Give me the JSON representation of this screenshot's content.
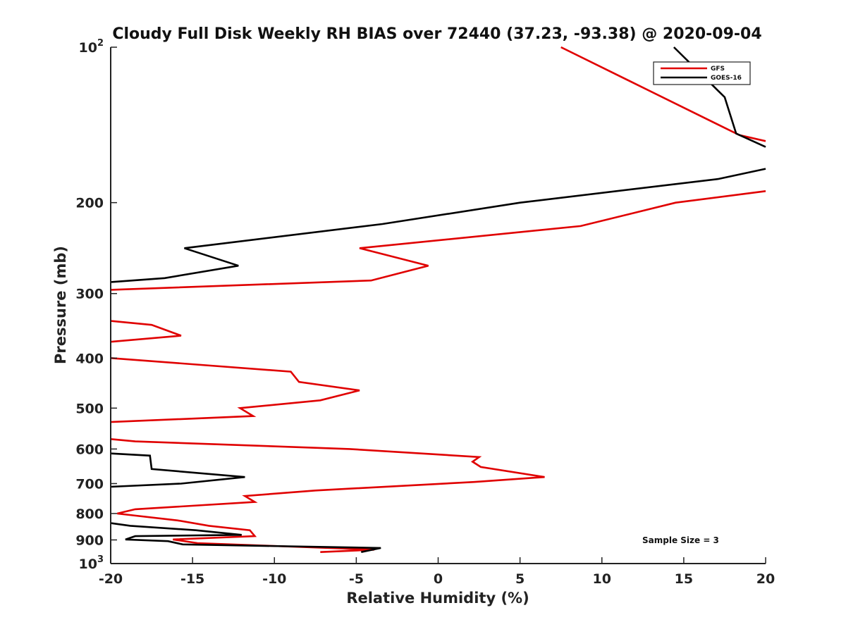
{
  "chart_data": {
    "type": "line",
    "title": "Cloudy Full Disk Weekly RH BIAS over 72440 (37.23, -93.38) @ 2020-09-04",
    "xlabel": "Relative Humidity (%)",
    "ylabel": "Pressure (mb)",
    "xlim": [
      -20,
      20
    ],
    "ylim": [
      100,
      1000
    ],
    "y_scale": "log",
    "y_reversed": true,
    "x_ticks": [
      "-20",
      "-15",
      "-10",
      "-5",
      "0",
      "5",
      "10",
      "15",
      "20"
    ],
    "y_ticks": [
      {
        "value": 100,
        "base": "10",
        "exp": "2"
      },
      {
        "value": 200,
        "label": "200"
      },
      {
        "value": 300,
        "label": "300"
      },
      {
        "value": 400,
        "label": "400"
      },
      {
        "value": 500,
        "label": "500"
      },
      {
        "value": 600,
        "label": "600"
      },
      {
        "value": 700,
        "label": "700"
      },
      {
        "value": 800,
        "label": "800"
      },
      {
        "value": 900,
        "label": "900"
      },
      {
        "value": 1000,
        "base": "10",
        "exp": "3"
      }
    ],
    "legend_position": "top-right",
    "annotation": "Sample Size = 3",
    "series": [
      {
        "name": "GFS",
        "color": "#e00000",
        "points": [
          [
            7.5,
            100
          ],
          [
            18.4,
            148
          ],
          [
            20,
            152
          ],
          [
            null,
            null
          ],
          [
            20,
            190
          ],
          [
            14.5,
            200
          ],
          [
            8.7,
            222
          ],
          [
            -4.8,
            245
          ],
          [
            -0.6,
            265
          ],
          [
            -4.1,
            283
          ],
          [
            -20,
            295
          ],
          [
            null,
            null
          ],
          [
            -20,
            339
          ],
          [
            -17.5,
            345
          ],
          [
            -15.7,
            362
          ],
          [
            -20,
            372
          ],
          [
            null,
            null
          ],
          [
            -20,
            400
          ],
          [
            -9.0,
            425
          ],
          [
            -8.5,
            445
          ],
          [
            -4.8,
            462
          ],
          [
            -7.2,
            483
          ],
          [
            -12.1,
            500
          ],
          [
            -11.3,
            518
          ],
          [
            -20,
            532
          ],
          [
            null,
            null
          ],
          [
            -20,
            574
          ],
          [
            -18.5,
            580
          ],
          [
            -5.4,
            600
          ],
          [
            2.5,
            622
          ],
          [
            2.1,
            635
          ],
          [
            2.6,
            650
          ],
          [
            6.5,
            680
          ],
          [
            2.2,
            695
          ],
          [
            -7.5,
            722
          ],
          [
            -11.8,
            740
          ],
          [
            -11.2,
            760
          ],
          [
            -18.5,
            785
          ],
          [
            -19.6,
            800
          ],
          [
            -15.9,
            825
          ],
          [
            -14.0,
            845
          ],
          [
            -11.5,
            862
          ],
          [
            -11.2,
            885
          ],
          [
            -16.2,
            898
          ],
          [
            -14.7,
            913
          ],
          [
            -3.9,
            940
          ],
          [
            -7.2,
            950
          ]
        ]
      },
      {
        "name": "GOES-16",
        "color": "#000000",
        "points": [
          [
            14.4,
            100
          ],
          [
            17.5,
            125
          ],
          [
            18.2,
            147
          ],
          [
            20,
            156
          ],
          [
            null,
            null
          ],
          [
            20,
            172
          ],
          [
            17.1,
            180
          ],
          [
            5.0,
            200
          ],
          [
            -3.4,
            220
          ],
          [
            -15.5,
            245
          ],
          [
            -12.2,
            265
          ],
          [
            -16.7,
            280
          ],
          [
            -20,
            285
          ],
          [
            null,
            null
          ],
          [
            -20,
            612
          ],
          [
            -17.6,
            618
          ],
          [
            -17.5,
            656
          ],
          [
            -11.8,
            680
          ],
          [
            -15.7,
            700
          ],
          [
            -20,
            710
          ],
          [
            null,
            null
          ],
          [
            -20,
            835
          ],
          [
            -18.8,
            845
          ],
          [
            -14.8,
            862
          ],
          [
            -12.0,
            880
          ],
          [
            -18.5,
            885
          ],
          [
            -19.1,
            898
          ],
          [
            -16.5,
            905
          ],
          [
            -15.6,
            918
          ],
          [
            -3.5,
            933
          ],
          [
            -4.7,
            950
          ]
        ]
      }
    ]
  }
}
